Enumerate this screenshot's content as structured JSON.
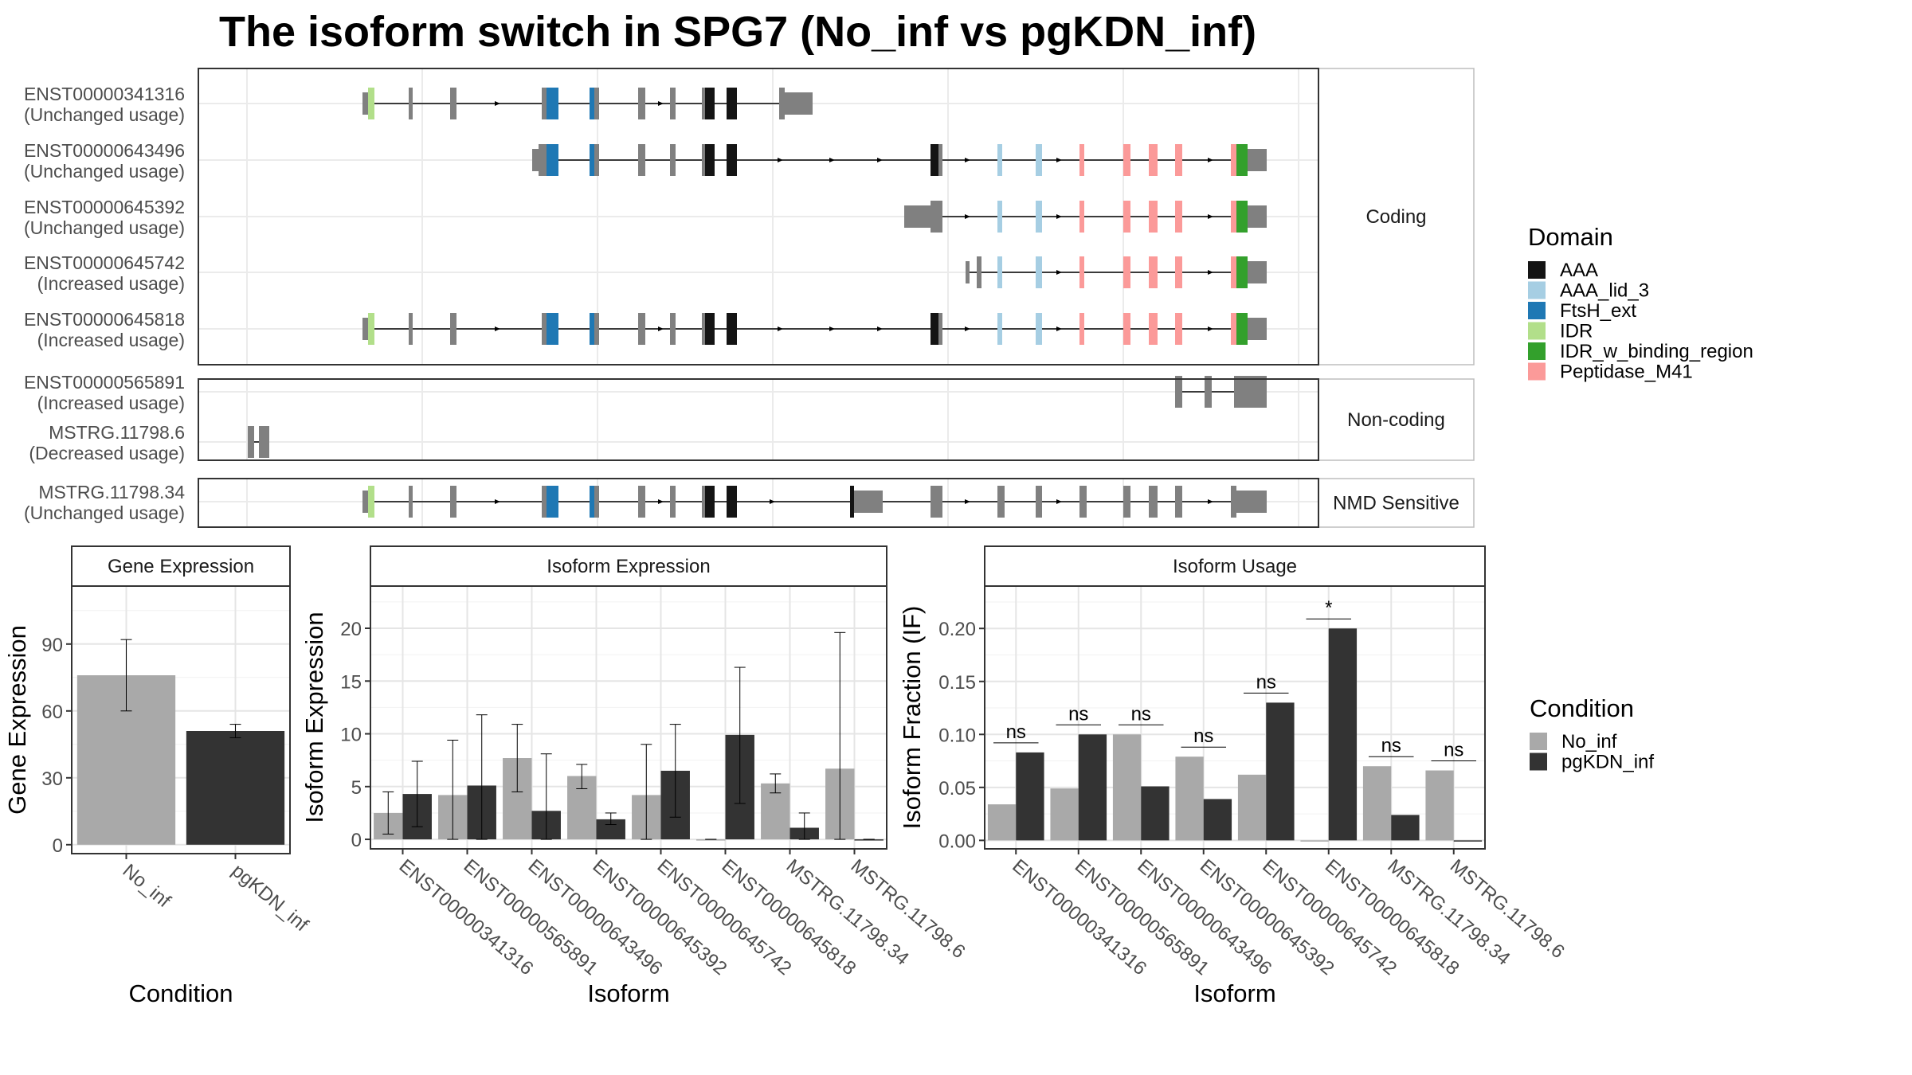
{
  "title": "The isoform switch in SPG7 (No_inf vs pgKDN_inf)",
  "colors": {
    "AAA": "#141414",
    "AAA_lid_3": "#a6cee3",
    "FtsH_ext": "#1f78b4",
    "IDR": "#b2df8a",
    "IDR_w_binding_region": "#33a02c",
    "Peptidase_M41": "#fb9a99",
    "untranslated": "#808080",
    "No_inf": "#a9a9a9",
    "pgKDN_inf": "#333333"
  },
  "structure": {
    "facets": [
      {
        "label": "Coding",
        "isoforms": [
          {
            "id": "ENST00000341316",
            "usage": "(Unchanged usage)"
          },
          {
            "id": "ENST00000643496",
            "usage": "(Unchanged usage)"
          },
          {
            "id": "ENST00000645392",
            "usage": "(Unchanged usage)"
          },
          {
            "id": "ENST00000645742",
            "usage": "(Increased usage)"
          },
          {
            "id": "ENST00000645818",
            "usage": "(Increased usage)"
          }
        ]
      },
      {
        "label": "Non-coding",
        "isoforms": [
          {
            "id": "ENST00000565891",
            "usage": "(Increased usage)"
          },
          {
            "id": "MSTRG.11798.6",
            "usage": "(Decreased usage)"
          }
        ]
      },
      {
        "label": "NMD Sensitive",
        "isoforms": [
          {
            "id": "MSTRG.11798.34",
            "usage": "(Unchanged usage)"
          }
        ]
      }
    ],
    "legend": {
      "title": "Domain",
      "items": [
        "AAA",
        "AAA_lid_3",
        "FtsH_ext",
        "IDR",
        "IDR_w_binding_region",
        "Peptidase_M41"
      ]
    }
  },
  "chart_data": [
    {
      "type": "bar",
      "title": "Gene Expression",
      "xlabel": "Condition",
      "ylabel": "Gene Expression",
      "categories": [
        "No_inf",
        "pgKDN_inf"
      ],
      "values": [
        76,
        51
      ],
      "errors": [
        [
          60,
          92
        ],
        [
          48,
          54
        ]
      ],
      "ylim": [
        -4,
        116
      ],
      "yticks": [
        0,
        30,
        60,
        90
      ]
    },
    {
      "type": "bar",
      "title": "Isoform Expression",
      "xlabel": "Isoform",
      "ylabel": "Isoform Expression",
      "categories": [
        "ENST00000341316",
        "ENST00000565891",
        "ENST00000643496",
        "ENST00000645392",
        "ENST00000645742",
        "ENST00000645818",
        "MSTRG.11798.34",
        "MSTRG.11798.6"
      ],
      "ylim": [
        -0.9,
        24
      ],
      "yticks": [
        0,
        5,
        10,
        15,
        20
      ],
      "series": [
        {
          "name": "No_inf",
          "values": [
            2.5,
            4.2,
            7.7,
            6.0,
            4.2,
            0,
            5.3,
            6.7
          ],
          "errors": [
            [
              0.5,
              4.5
            ],
            [
              0,
              9.4
            ],
            [
              4.5,
              10.9
            ],
            [
              4.8,
              7.1
            ],
            [
              0,
              9.0
            ],
            [
              0,
              0
            ],
            [
              4.4,
              6.2
            ],
            [
              0,
              19.6
            ]
          ]
        },
        {
          "name": "pgKDN_inf",
          "values": [
            4.3,
            5.1,
            2.7,
            1.9,
            6.5,
            9.9,
            1.1,
            0
          ],
          "errors": [
            [
              1.2,
              7.4
            ],
            [
              0,
              11.8
            ],
            [
              0,
              8.1
            ],
            [
              1.4,
              2.5
            ],
            [
              2.1,
              10.9
            ],
            [
              3.4,
              16.3
            ],
            [
              0,
              2.5
            ],
            [
              0,
              0
            ]
          ]
        }
      ]
    },
    {
      "type": "bar",
      "title": "Isoform Usage",
      "xlabel": "Isoform",
      "ylabel": "Isoform Fraction (IF)",
      "categories": [
        "ENST00000341316",
        "ENST00000565891",
        "ENST00000643496",
        "ENST00000645392",
        "ENST00000645742",
        "ENST00000645818",
        "MSTRG.11798.34",
        "MSTRG.11798.6"
      ],
      "ylim": [
        -0.008,
        0.24
      ],
      "yticks": [
        "0.00",
        "0.05",
        "0.10",
        "0.15",
        "0.20"
      ],
      "series": [
        {
          "name": "No_inf",
          "values": [
            0.034,
            0.049,
            0.1,
            0.079,
            0.062,
            0.0,
            0.07,
            0.066
          ]
        },
        {
          "name": "pgKDN_inf",
          "values": [
            0.083,
            0.1,
            0.051,
            0.039,
            0.13,
            0.2,
            0.024,
            0.0
          ]
        }
      ],
      "significance": [
        "ns",
        "ns",
        "ns",
        "ns",
        "ns",
        "*",
        "ns",
        "ns"
      ]
    }
  ],
  "condition_legend": {
    "title": "Condition",
    "items": [
      "No_inf",
      "pgKDN_inf"
    ]
  }
}
